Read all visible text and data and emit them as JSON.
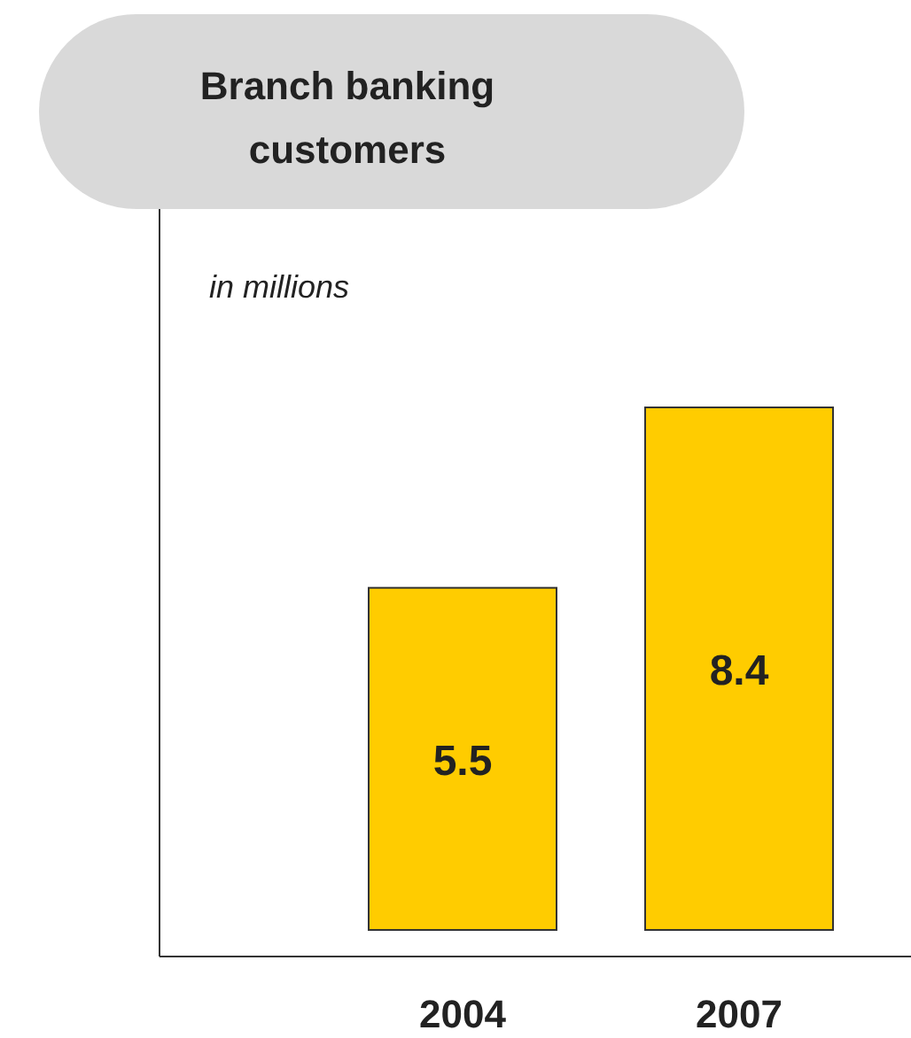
{
  "chart_data": {
    "type": "bar",
    "title": "Branch banking customers",
    "subtitle": "in millions",
    "categories": [
      "2004",
      "2007"
    ],
    "values": [
      5.5,
      8.4
    ],
    "color": "#ffcc00",
    "data_labels": true
  }
}
